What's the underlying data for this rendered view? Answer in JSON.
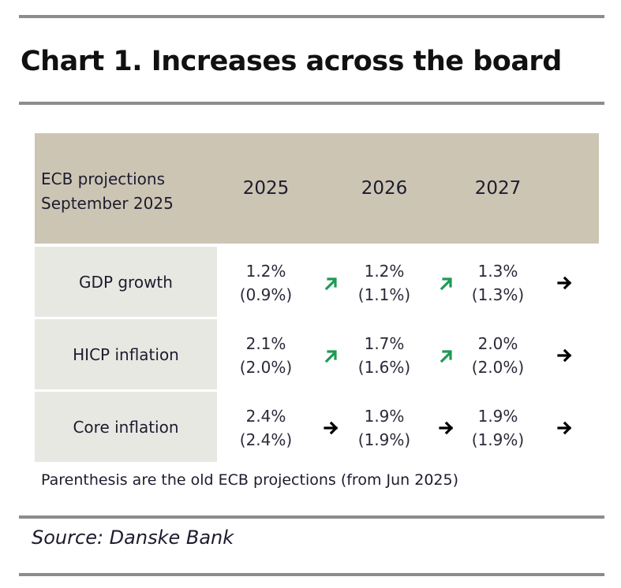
{
  "title": "Chart 1. Increases across the board",
  "chart_data": {
    "type": "table",
    "title": "Chart 1. Increases across the board",
    "header_label_lines": [
      "ECB projections",
      "September 2025"
    ],
    "columns": [
      "2025",
      "2026",
      "2027"
    ],
    "rows": [
      {
        "label": "GDP growth",
        "new": [
          "1.2%",
          "1.2%",
          "1.3%"
        ],
        "old": [
          "(0.9%)",
          "(1.1%)",
          "(1.3%)"
        ],
        "trend": [
          "up",
          "up",
          "flat"
        ]
      },
      {
        "label": "HICP inflation",
        "new": [
          "2.1%",
          "1.7%",
          "2.0%"
        ],
        "old": [
          "(2.0%)",
          "(1.6%)",
          "(2.0%)"
        ],
        "trend": [
          "up",
          "up",
          "flat"
        ]
      },
      {
        "label": "Core inflation",
        "new": [
          "2.4%",
          "1.9%",
          "1.9%"
        ],
        "old": [
          "(2.4%)",
          "(1.9%)",
          "(1.9%)"
        ],
        "trend": [
          "flat",
          "flat",
          "flat"
        ]
      }
    ],
    "note": "Parenthesis are the old ECB projections (from Jun 2025)",
    "source": "Source: Danske Bank"
  },
  "colors": {
    "up_arrow": "#1f9a55",
    "flat_arrow": "#000000",
    "header_bg": "#cdc5b4",
    "label_bg": "#e8e8e3",
    "rule": "#8c8c8c"
  }
}
